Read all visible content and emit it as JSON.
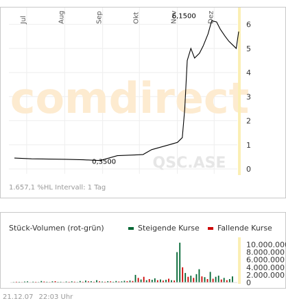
{
  "chart_data": [
    {
      "type": "line",
      "instrument": "QSC.ASE",
      "watermark": "comdirect",
      "x_tick_labels": [
        "Jul",
        "Aug",
        "Sep",
        "Okt",
        "Nov",
        "Dez"
      ],
      "y_tick_labels": [
        "0",
        "1",
        "2",
        "3",
        "4",
        "5",
        "6"
      ],
      "ylim": [
        0,
        6.5
      ],
      "grid": true,
      "x": [
        "2007-06-21",
        "2007-07-05",
        "2007-07-19",
        "2007-08-02",
        "2007-08-16",
        "2007-08-30",
        "2007-09-13",
        "2007-09-27",
        "2007-10-04",
        "2007-10-11",
        "2007-10-18",
        "2007-10-25",
        "2007-11-01",
        "2007-11-05",
        "2007-11-07",
        "2007-11-09",
        "2007-11-12",
        "2007-11-15",
        "2007-11-19",
        "2007-11-22",
        "2007-11-26",
        "2007-11-29",
        "2007-12-03",
        "2007-12-06",
        "2007-12-10",
        "2007-12-13",
        "2007-12-17",
        "2007-12-19",
        "2007-12-21"
      ],
      "y": [
        0.45,
        0.42,
        0.41,
        0.4,
        0.38,
        0.35,
        0.55,
        0.58,
        0.6,
        0.8,
        0.9,
        1.0,
        1.1,
        1.3,
        2.5,
        4.5,
        5.0,
        4.6,
        4.8,
        5.1,
        5.6,
        6.15,
        6.1,
        5.8,
        5.5,
        5.3,
        5.1,
        5.0,
        5.7
      ],
      "annotations": [
        {
          "label": "0,3500",
          "x": "2007-08-30",
          "y": 0.35
        },
        {
          "label": "6,1500",
          "x": "2007-11-29",
          "y": 6.15
        }
      ],
      "info_text": "1.657,1 %HL Intervall: 1 Tag"
    },
    {
      "type": "bar",
      "title": "Stück-Volumen (rot-grün)",
      "legend": [
        {
          "name": "Steigende Kurse",
          "color": "#006633"
        },
        {
          "name": "Fallende Kurse",
          "color": "#cc0000"
        }
      ],
      "y_tick_labels": [
        "0",
        "2.000.000",
        "4.000.000",
        "6.000.000",
        "8.000.000",
        "10.000.000"
      ],
      "ylim": [
        0,
        11000000
      ],
      "volumes": [
        [
          150000,
          "up"
        ],
        [
          200000,
          "down"
        ],
        [
          180000,
          "up"
        ],
        [
          120000,
          "down"
        ],
        [
          250000,
          "up"
        ],
        [
          300000,
          "up"
        ],
        [
          100000,
          "down"
        ],
        [
          220000,
          "up"
        ],
        [
          180000,
          "down"
        ],
        [
          150000,
          "up"
        ],
        [
          400000,
          "up"
        ],
        [
          250000,
          "down"
        ],
        [
          200000,
          "up"
        ],
        [
          150000,
          "down"
        ],
        [
          300000,
          "up"
        ],
        [
          350000,
          "down"
        ],
        [
          180000,
          "up"
        ],
        [
          200000,
          "up"
        ],
        [
          120000,
          "down"
        ],
        [
          260000,
          "up"
        ],
        [
          180000,
          "down"
        ],
        [
          300000,
          "up"
        ],
        [
          220000,
          "down"
        ],
        [
          150000,
          "up"
        ],
        [
          400000,
          "up"
        ],
        [
          200000,
          "down"
        ],
        [
          500000,
          "up"
        ],
        [
          300000,
          "down"
        ],
        [
          350000,
          "up"
        ],
        [
          200000,
          "down"
        ],
        [
          600000,
          "up"
        ],
        [
          300000,
          "down"
        ],
        [
          250000,
          "up"
        ],
        [
          200000,
          "down"
        ],
        [
          350000,
          "up"
        ],
        [
          300000,
          "down"
        ],
        [
          200000,
          "up"
        ],
        [
          400000,
          "up"
        ],
        [
          250000,
          "down"
        ],
        [
          300000,
          "up"
        ],
        [
          450000,
          "up"
        ],
        [
          350000,
          "down"
        ],
        [
          500000,
          "up"
        ],
        [
          400000,
          "down"
        ],
        [
          2000000,
          "up"
        ],
        [
          1200000,
          "down"
        ],
        [
          800000,
          "up"
        ],
        [
          1500000,
          "down"
        ],
        [
          600000,
          "up"
        ],
        [
          900000,
          "down"
        ],
        [
          700000,
          "up"
        ],
        [
          1100000,
          "up"
        ],
        [
          600000,
          "down"
        ],
        [
          800000,
          "up"
        ],
        [
          500000,
          "down"
        ],
        [
          700000,
          "up"
        ],
        [
          1000000,
          "down"
        ],
        [
          600000,
          "up"
        ],
        [
          500000,
          "down"
        ],
        [
          8000000,
          "up"
        ],
        [
          10500000,
          "up"
        ],
        [
          4000000,
          "down"
        ],
        [
          2500000,
          "up"
        ],
        [
          1500000,
          "down"
        ],
        [
          1800000,
          "up"
        ],
        [
          1200000,
          "down"
        ],
        [
          2200000,
          "up"
        ],
        [
          3500000,
          "up"
        ],
        [
          1600000,
          "down"
        ],
        [
          1400000,
          "up"
        ],
        [
          900000,
          "down"
        ],
        [
          2800000,
          "up"
        ],
        [
          1000000,
          "down"
        ],
        [
          1500000,
          "up"
        ],
        [
          1800000,
          "up"
        ],
        [
          800000,
          "down"
        ],
        [
          1200000,
          "up"
        ],
        [
          600000,
          "down"
        ],
        [
          900000,
          "up"
        ],
        [
          1600000,
          "up"
        ]
      ]
    }
  ],
  "timestamp": {
    "date": "21.12.07",
    "time": "22:03 Uhr"
  }
}
